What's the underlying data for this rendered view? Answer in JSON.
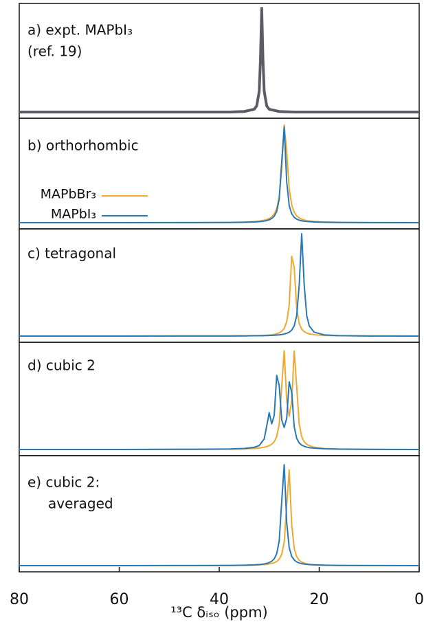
{
  "chart_data": [
    {
      "type": "line",
      "title": "a) expt. MAPbI₃",
      "subtitle": "(ref. 19)",
      "x": [
        80,
        60,
        45,
        38,
        35,
        33,
        32.5,
        32,
        31.75,
        31.5,
        31.25,
        31,
        30.5,
        30,
        28,
        25,
        20,
        10,
        0
      ],
      "xlim": [
        80,
        0
      ],
      "series": [
        {
          "color": "#5c5c66",
          "values": [
            0,
            0,
            0,
            0,
            0.005,
            0.027,
            0.059,
            0.2,
            0.5,
            1,
            0.5,
            0.2,
            0.059,
            0.027,
            0.005,
            0,
            0,
            0,
            0
          ]
        }
      ]
    },
    {
      "type": "line",
      "title": "b) orthorhombic",
      "x": [
        80,
        60,
        45,
        38,
        35,
        33,
        32,
        31,
        30.5,
        30,
        29.5,
        29,
        28.5,
        28,
        27.5,
        27,
        26.5,
        26,
        25.5,
        25,
        24.5,
        24,
        23.5,
        23,
        22.5,
        22,
        21,
        19,
        16,
        10,
        0
      ],
      "xlim": [
        80,
        0
      ],
      "legend": "left",
      "series": [
        {
          "name": "MAPbBr₃",
          "color": "#f0a830",
          "values": [
            0,
            0,
            0.001,
            0.003,
            0.006,
            0.011,
            0.016,
            0.025,
            0.032,
            0.042,
            0.059,
            0.088,
            0.142,
            0.26,
            0.54,
            0.98,
            0.72,
            0.34,
            0.177,
            0.105,
            0.068,
            0.048,
            0.035,
            0.027,
            0.021,
            0.017,
            0.012,
            0.007,
            0.004,
            0.001,
            0
          ]
        },
        {
          "name": "MAPbI₃",
          "color": "#2878b5",
          "values": [
            0,
            0,
            0.001,
            0.002,
            0.004,
            0.007,
            0.01,
            0.016,
            0.021,
            0.029,
            0.042,
            0.065,
            0.113,
            0.236,
            0.61,
            0.96,
            0.41,
            0.171,
            0.089,
            0.054,
            0.036,
            0.025,
            0.019,
            0.015,
            0.012,
            0.01,
            0.007,
            0.004,
            0.002,
            0.001,
            0
          ]
        }
      ]
    },
    {
      "type": "line",
      "title": "c) tetragonal",
      "x": [
        80,
        60,
        45,
        38,
        35,
        33,
        32,
        31,
        30.5,
        30,
        29.5,
        29,
        28.5,
        28,
        27.5,
        27,
        26.5,
        26,
        25.5,
        25,
        24.5,
        24,
        23.5,
        23,
        22.5,
        22,
        21,
        19,
        16,
        10,
        0
      ],
      "xlim": [
        80,
        0
      ],
      "series": [
        {
          "color": "#f0a830",
          "values": [
            0,
            0,
            0.001,
            0.001,
            0.003,
            0.004,
            0.005,
            0.007,
            0.009,
            0.011,
            0.013,
            0.017,
            0.023,
            0.031,
            0.047,
            0.075,
            0.141,
            0.3,
            0.78,
            0.67,
            0.27,
            0.122,
            0.068,
            0.043,
            0.029,
            0.021,
            0.013,
            0.006,
            0.003,
            0.001,
            0
          ]
        },
        {
          "color": "#2878b5",
          "values": [
            0,
            0,
            0.001,
            0.001,
            0.002,
            0.003,
            0.003,
            0.004,
            0.005,
            0.006,
            0.007,
            0.008,
            0.01,
            0.012,
            0.015,
            0.02,
            0.027,
            0.038,
            0.059,
            0.1,
            0.2,
            0.5,
            1,
            0.5,
            0.2,
            0.1,
            0.038,
            0.012,
            0.004,
            0.001,
            0
          ]
        }
      ]
    },
    {
      "type": "line",
      "title": "d) cubic 2",
      "x": [
        80,
        60,
        45,
        38,
        35,
        33,
        32,
        31,
        30.5,
        30,
        29.5,
        29,
        28.5,
        28,
        27.5,
        27,
        26.5,
        26,
        25.5,
        25,
        24.5,
        24,
        23.5,
        23,
        22.5,
        22,
        21,
        19,
        16,
        10,
        0
      ],
      "xlim": [
        80,
        0
      ],
      "series": [
        {
          "color": "#f0a830",
          "values": [
            0,
            0,
            0.002,
            0.003,
            0.006,
            0.01,
            0.014,
            0.022,
            0.028,
            0.037,
            0.051,
            0.076,
            0.125,
            0.248,
            0.614,
            0.963,
            0.474,
            0.325,
            0.474,
            0.963,
            0.614,
            0.248,
            0.125,
            0.076,
            0.051,
            0.037,
            0.022,
            0.01,
            0.005,
            0.002,
            0
          ]
        },
        {
          "color": "#2878b5",
          "values": [
            0,
            0,
            0.002,
            0.005,
            0.01,
            0.021,
            0.038,
            0.103,
            0.229,
            0.36,
            0.251,
            0.332,
            0.723,
            0.624,
            0.288,
            0.216,
            0.305,
            0.661,
            0.557,
            0.222,
            0.108,
            0.064,
            0.042,
            0.031,
            0.023,
            0.018,
            0.013,
            0.007,
            0.003,
            0.001,
            0
          ]
        }
      ]
    },
    {
      "type": "line",
      "title": "e) cubic 2:",
      "subtitle": "averaged",
      "x": [
        80,
        60,
        45,
        38,
        35,
        33,
        32,
        31,
        30.5,
        30,
        29.5,
        29,
        28.5,
        28,
        27.5,
        27,
        26.5,
        26,
        25.5,
        25,
        24.5,
        24,
        23.5,
        23,
        22.5,
        22,
        21,
        19,
        16,
        10,
        0
      ],
      "xlim": [
        80,
        0
      ],
      "xticks": [
        80,
        60,
        40,
        20,
        0
      ],
      "xlabel": "¹³C δᵢₛₒ (ppm)",
      "series": [
        {
          "color": "#f0a830",
          "values": [
            0,
            0,
            0.001,
            0.002,
            0.003,
            0.005,
            0.007,
            0.01,
            0.012,
            0.016,
            0.021,
            0.028,
            0.04,
            0.062,
            0.107,
            0.224,
            0.58,
            0.91,
            0.39,
            0.162,
            0.085,
            0.051,
            0.034,
            0.024,
            0.018,
            0.014,
            0.009,
            0.005,
            0.002,
            0.001,
            0
          ]
        },
        {
          "color": "#2878b5",
          "values": [
            0,
            0,
            0.001,
            0.002,
            0.004,
            0.007,
            0.01,
            0.016,
            0.021,
            0.029,
            0.042,
            0.065,
            0.113,
            0.236,
            0.61,
            0.96,
            0.41,
            0.171,
            0.089,
            0.054,
            0.036,
            0.025,
            0.019,
            0.015,
            0.012,
            0.01,
            0.007,
            0.004,
            0.002,
            0.001,
            0
          ]
        }
      ]
    }
  ]
}
